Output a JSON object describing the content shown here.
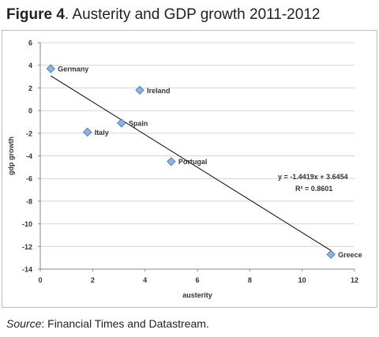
{
  "figure": {
    "label": "Figure 4",
    "title": ". Austerity and GDP growth 2011-2012"
  },
  "source": {
    "label": "Source",
    "text": ": Financial Times and Datastream."
  },
  "chart_data": {
    "type": "scatter",
    "title": "",
    "xlabel": "austerity",
    "ylabel": "gdp growth",
    "xlim": [
      0,
      12
    ],
    "ylim": [
      -14,
      6
    ],
    "xticks": [
      0,
      2,
      4,
      6,
      8,
      10,
      12
    ],
    "yticks": [
      6,
      4,
      2,
      0,
      -2,
      -4,
      -6,
      -8,
      -10,
      -12,
      -14
    ],
    "grid": "horizontal",
    "points": [
      {
        "label": "Germany",
        "x": 0.4,
        "y": 3.7
      },
      {
        "label": "Ireland",
        "x": 3.8,
        "y": 1.8
      },
      {
        "label": "Spain",
        "x": 3.1,
        "y": -1.1
      },
      {
        "label": "Italy",
        "x": 1.8,
        "y": -1.9
      },
      {
        "label": "Portugal",
        "x": 5.0,
        "y": -4.5
      },
      {
        "label": "Greece",
        "x": 11.1,
        "y": -12.7
      }
    ],
    "trendline": {
      "slope": -1.4419,
      "intercept": 3.6454,
      "x_range": [
        0.4,
        11.1
      ],
      "equation": "y = -1.4419x + 3.6454",
      "r2": "R² = 0.8601"
    },
    "marker_color": "#8DB3E2",
    "marker_stroke": "#4F81BD",
    "line_color": "#000000"
  }
}
